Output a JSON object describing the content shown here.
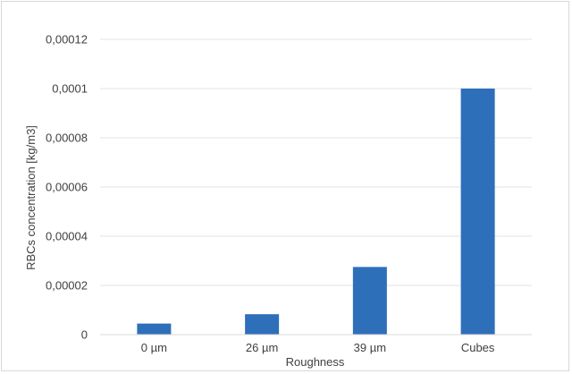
{
  "chart_data": {
    "type": "bar",
    "categories": [
      "0 µm",
      "26 µm",
      "39 µm",
      "Cubes"
    ],
    "values": [
      4.5e-06,
      8.3e-06,
      2.75e-05,
      0.0001
    ],
    "xlabel": "Roughness",
    "ylabel": "RBCs concentration [kg/m3]",
    "ylim": [
      0,
      0.00012
    ],
    "yticks": [
      {
        "value": 0,
        "label": "0"
      },
      {
        "value": 2e-05,
        "label": "0,00002"
      },
      {
        "value": 4e-05,
        "label": "0,00004"
      },
      {
        "value": 6e-05,
        "label": "0,00006"
      },
      {
        "value": 8e-05,
        "label": "0,00008"
      },
      {
        "value": 0.0001,
        "label": "0,0001"
      },
      {
        "value": 0.00012,
        "label": "0,00012"
      }
    ],
    "grid": true,
    "bar_color": "#2e6fba",
    "grid_color": "#e3e3e3"
  }
}
